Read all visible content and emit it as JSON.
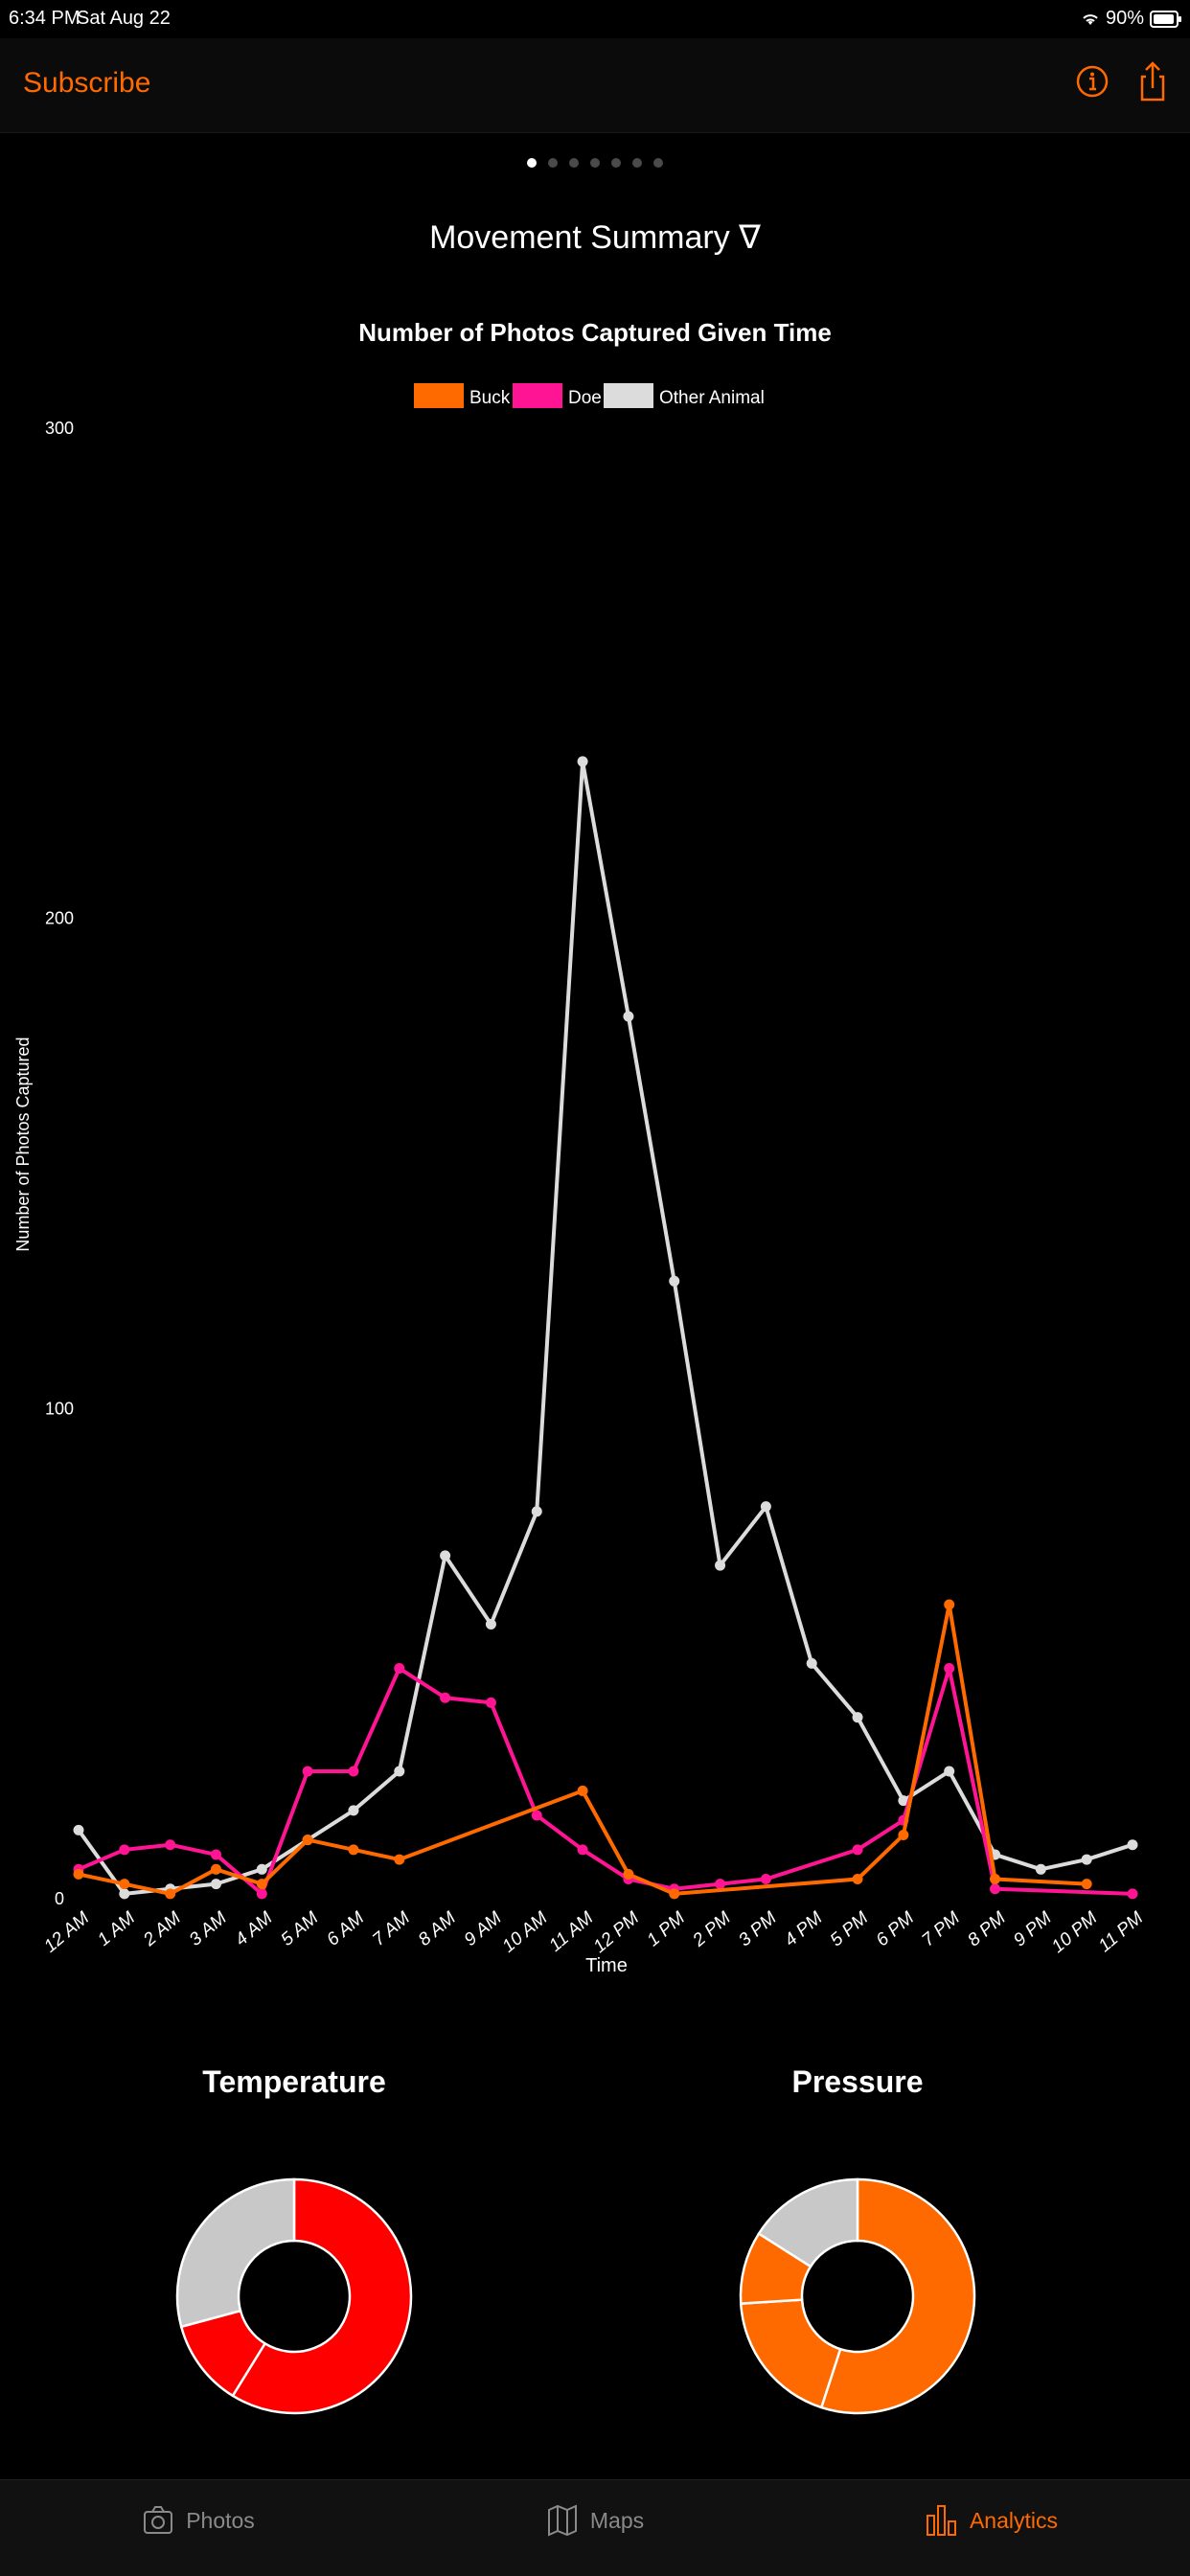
{
  "status_bar": {
    "time": "6:34 PM",
    "date": "Sat Aug 22",
    "battery": "90%"
  },
  "nav": {
    "subscribe_label": "Subscribe",
    "icons": [
      "info-icon",
      "share-icon"
    ]
  },
  "pager": {
    "count": 7,
    "active": 0
  },
  "summary": {
    "title": "Movement Summary ∇"
  },
  "chart_data": {
    "type": "line",
    "title": "Number of Photos Captured Given Time",
    "xlabel": "Time",
    "ylabel": "Number of Photos Captured",
    "ylim": [
      0,
      300
    ],
    "yticks": [
      0,
      100,
      200,
      300
    ],
    "categories": [
      "12 AM",
      "1 AM",
      "2 AM",
      "3 AM",
      "4 AM",
      "5 AM",
      "6 AM",
      "7 AM",
      "8 AM",
      "9 AM",
      "10 AM",
      "11 AM",
      "12 PM",
      "1 PM",
      "2 PM",
      "3 PM",
      "4 PM",
      "5 PM",
      "6 PM",
      "7 PM",
      "8 PM",
      "9 PM",
      "10 PM",
      "11 PM"
    ],
    "legend_position": "top-center",
    "grid": false,
    "series": [
      {
        "name": "Buck",
        "color": "#ff6a00",
        "x": [
          0,
          1,
          2,
          3,
          4,
          5,
          6,
          7,
          11,
          12,
          13,
          17,
          18,
          19,
          20,
          22
        ],
        "values": [
          5,
          3,
          1,
          6,
          3,
          12,
          10,
          8,
          22,
          5,
          1,
          4,
          13,
          60,
          4,
          3
        ]
      },
      {
        "name": "Doe",
        "color": "#ff1493",
        "x": [
          0,
          1,
          2,
          3,
          4,
          5,
          6,
          7,
          8,
          9,
          10,
          11,
          12,
          13,
          14,
          15,
          17,
          18,
          19,
          20,
          23
        ],
        "values": [
          6,
          10,
          11,
          9,
          1,
          26,
          26,
          47,
          41,
          40,
          17,
          10,
          4,
          2,
          3,
          4,
          10,
          16,
          47,
          2,
          1
        ]
      },
      {
        "name": "Other Animal",
        "color": "#dcdcdc",
        "x": [
          0,
          1,
          2,
          3,
          4,
          5,
          6,
          7,
          8,
          9,
          10,
          11,
          12,
          13,
          14,
          15,
          16,
          17,
          18,
          19,
          20,
          21,
          22,
          23
        ],
        "values": [
          14,
          1,
          2,
          3,
          6,
          12,
          18,
          26,
          70,
          56,
          79,
          232,
          180,
          126,
          68,
          80,
          48,
          37,
          20,
          26,
          9,
          6,
          8,
          11
        ]
      }
    ]
  },
  "donuts": [
    {
      "title": "Temperature",
      "slices": [
        {
          "value": 0.588,
          "color": "#ff0000"
        },
        {
          "value": 0.12,
          "color": "#ff0000"
        },
        {
          "value": 0.292,
          "color": "#c8c8c8"
        }
      ]
    },
    {
      "title": "Pressure",
      "slices": [
        {
          "value": 0.55,
          "color": "#ff6a00"
        },
        {
          "value": 0.19,
          "color": "#ff6a00"
        },
        {
          "value": 0.1,
          "color": "#ff6a00"
        },
        {
          "value": 0.16,
          "color": "#c8c8c8"
        }
      ]
    }
  ],
  "tabs": [
    {
      "label": "Photos",
      "icon": "camera-icon",
      "active": false
    },
    {
      "label": "Maps",
      "icon": "map-icon",
      "active": false
    },
    {
      "label": "Analytics",
      "icon": "bar-chart-icon",
      "active": true
    }
  ]
}
